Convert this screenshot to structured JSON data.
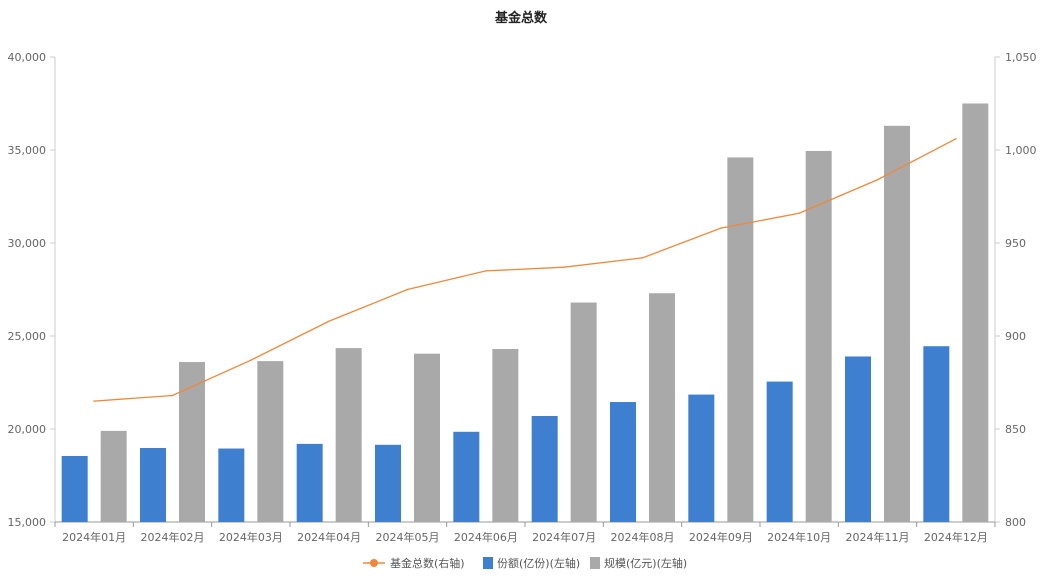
{
  "chart_data": {
    "type": "bar",
    "title": "基金总数",
    "categories": [
      "2024年01月",
      "2024年02月",
      "2024年03月",
      "2024年04月",
      "2024年05月",
      "2024年06月",
      "2024年07月",
      "2024年08月",
      "2024年09月",
      "2024年10月",
      "2024年11月",
      "2024年12月"
    ],
    "left_axis": {
      "ylim": [
        15000,
        40000
      ],
      "ticks": [
        "15,000",
        "20,000",
        "25,000",
        "30,000",
        "35,000",
        "40,000"
      ],
      "tick_values": [
        15000,
        20000,
        25000,
        30000,
        35000,
        40000
      ]
    },
    "right_axis": {
      "ylim": [
        800,
        1050
      ],
      "ticks": [
        "800",
        "850",
        "900",
        "950",
        "1,000",
        "1,050"
      ],
      "tick_values": [
        800,
        850,
        900,
        950,
        1000,
        1050
      ]
    },
    "series": [
      {
        "name": "基金总数(右轴)",
        "type": "line",
        "axis": "right",
        "color": "#f0883a",
        "values": [
          865,
          868,
          887,
          908,
          925,
          935,
          937,
          942,
          958,
          966,
          984,
          1006
        ]
      },
      {
        "name": "份额(亿份)(左轴)",
        "type": "bar",
        "axis": "left",
        "color": "#3f7fcf",
        "values": [
          18550,
          18980,
          18950,
          19200,
          19150,
          19850,
          20700,
          21450,
          21850,
          22550,
          23900,
          24450
        ]
      },
      {
        "name": "规模(亿元)(左轴)",
        "type": "bar",
        "axis": "left",
        "color": "#a9a9a9",
        "values": [
          19900,
          23600,
          23650,
          24350,
          24050,
          24300,
          26800,
          27300,
          34600,
          34950,
          36300,
          37500
        ]
      }
    ],
    "grid": false,
    "legend_position": "bottom"
  }
}
